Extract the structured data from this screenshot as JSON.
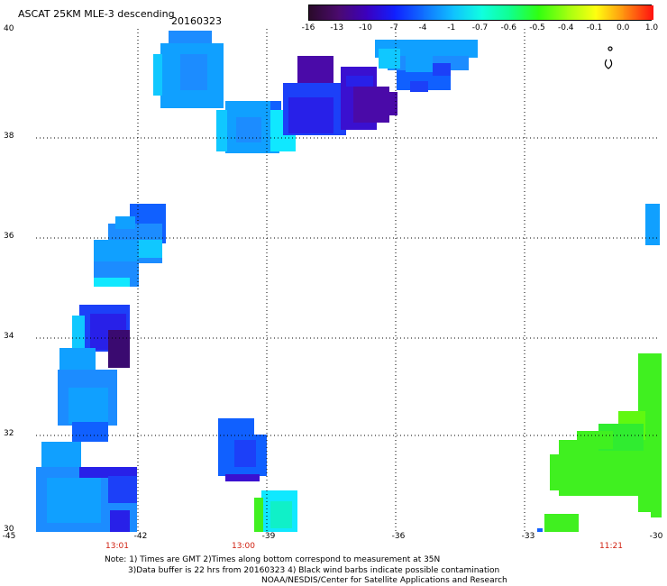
{
  "title": "ASCAT 25KM MLE-3 descending",
  "date": "20160323",
  "legend": {
    "labels": [
      "-16",
      "-13",
      "-10",
      "-7",
      "-4",
      "-1",
      "-0.7",
      "-0.6",
      "-0.5",
      "-0.4",
      "-0.1",
      "0.0",
      "1.0"
    ],
    "colors": [
      "#2a0a2a",
      "#4b0a6e",
      "#3b00c0",
      "#1020ff",
      "#1070ff",
      "#10c0ff",
      "#10ffe0",
      "#10ff90",
      "#30ff10",
      "#a0ff10",
      "#ffff10",
      "#ff9010",
      "#ff1010"
    ]
  },
  "y_axis": {
    "labels": [
      "40",
      "38",
      "36",
      "34",
      "32",
      "30"
    ]
  },
  "x_axis": {
    "labels": [
      "-45",
      "-42",
      "-39",
      "-36",
      "-33",
      "-30"
    ]
  },
  "time_labels": [
    "13:01",
    "13:00",
    "11:21"
  ],
  "notes": {
    "line1": "Note: 1) Times are GMT 2)Times along bottom correspond to measurement at 35N",
    "line2": "3)Data buffer is 22 hrs from 20160323 4) Black wind barbs indicate possible contamination",
    "line3": "NOAA/NESDIS/Center for Satellite Applications and Research"
  },
  "colors": {
    "grid": "#000000",
    "time_label": "#d02010"
  }
}
